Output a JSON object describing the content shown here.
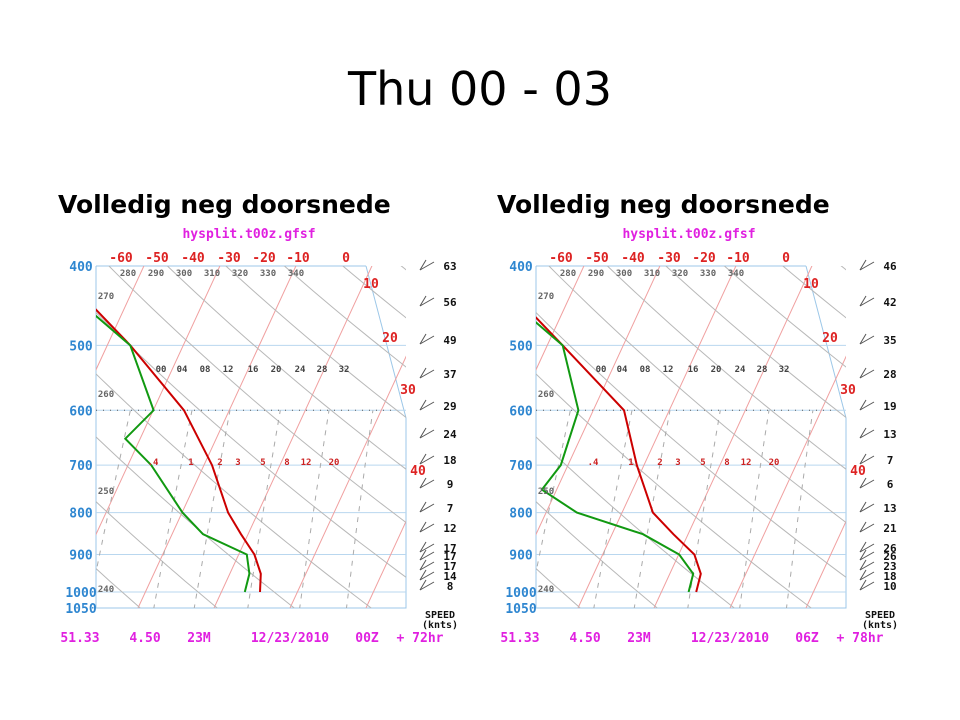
{
  "slide": {
    "title": "Thu 00 - 03"
  },
  "panels": [
    {
      "subtitle": "Volledig neg doorsnede"
    },
    {
      "subtitle": "Volledig neg doorsnede"
    }
  ],
  "chart_data": [
    {
      "type": "skew-t",
      "model_label": "hysplit.t00z.gfsf",
      "pressure_levels": [
        "400",
        "500",
        "600",
        "700",
        "800",
        "900",
        "1000",
        "1050"
      ],
      "temp_labels_top": [
        "-60",
        "-50",
        "-40",
        "-30",
        "-20",
        "-10",
        "0"
      ],
      "temp_labels_right": [
        "10",
        "20",
        "30",
        "40"
      ],
      "theta_labels_top": [
        "280",
        "290",
        "300",
        "310",
        "320",
        "330",
        "340"
      ],
      "theta_labels_left": [
        "270",
        "260",
        "250",
        "240"
      ],
      "mixing_ratio_labels_mid": [
        "00",
        "04",
        "08",
        "12",
        "16",
        "20",
        "24",
        "28",
        "32"
      ],
      "mixing_ratio_labels_low": [
        ".4",
        "1",
        "2",
        "3",
        "5",
        "8",
        "12",
        "20"
      ],
      "speed_header": "SPEED",
      "speed_unit": "(knts)",
      "wind_speeds": [
        "63",
        "56",
        "49",
        "37",
        "29",
        "24",
        "18",
        "9",
        "7",
        "12",
        "17",
        "17",
        "17",
        "14",
        "8"
      ],
      "footer": {
        "lat": "51.33",
        "lon": "4.50",
        "elev": "23M",
        "date": "12/23/2010",
        "cycle": "00Z",
        "forecast": "+ 72hr"
      },
      "temperature_color": "#cc0000",
      "dewpoint_color": "#119911",
      "temperature_profile": [
        [
          1000,
          5
        ],
        [
          950,
          4
        ],
        [
          900,
          2
        ],
        [
          850,
          -1
        ],
        [
          800,
          -4
        ],
        [
          700,
          -9
        ],
        [
          600,
          -16
        ],
        [
          500,
          -27
        ],
        [
          450,
          -34
        ],
        [
          400,
          -40
        ]
      ],
      "dewpoint_profile": [
        [
          1000,
          3
        ],
        [
          950,
          2.5
        ],
        [
          900,
          1
        ],
        [
          850,
          -6
        ],
        [
          800,
          -10
        ],
        [
          700,
          -17
        ],
        [
          650,
          -22
        ],
        [
          600,
          -20
        ],
        [
          500,
          -27
        ],
        [
          450,
          -35
        ],
        [
          400,
          -42
        ]
      ]
    },
    {
      "type": "skew-t",
      "model_label": "hysplit.t00z.gfsf",
      "pressure_levels": [
        "400",
        "500",
        "600",
        "700",
        "800",
        "900",
        "1000",
        "1050"
      ],
      "temp_labels_top": [
        "-60",
        "-50",
        "-40",
        "-30",
        "-20",
        "-10",
        "0"
      ],
      "temp_labels_right": [
        "10",
        "20",
        "30",
        "40"
      ],
      "theta_labels_top": [
        "280",
        "290",
        "300",
        "310",
        "320",
        "330",
        "340"
      ],
      "theta_labels_left": [
        "270",
        "260",
        "250",
        "240"
      ],
      "mixing_ratio_labels_mid": [
        "00",
        "04",
        "08",
        "12",
        "16",
        "20",
        "24",
        "28",
        "32"
      ],
      "mixing_ratio_labels_low": [
        ".4",
        "1",
        "2",
        "3",
        "5",
        "8",
        "12",
        "20"
      ],
      "speed_header": "SPEED",
      "speed_unit": "(knts)",
      "wind_speeds": [
        "46",
        "42",
        "35",
        "28",
        "19",
        "13",
        "7",
        "6",
        "13",
        "21",
        "26",
        "26",
        "23",
        "18",
        "10"
      ],
      "footer": {
        "lat": "51.33",
        "lon": "4.50",
        "elev": "23M",
        "date": "12/23/2010",
        "cycle": "06Z",
        "forecast": "+ 78hr"
      },
      "temperature_color": "#cc0000",
      "dewpoint_color": "#119911",
      "temperature_profile": [
        [
          1000,
          4.5
        ],
        [
          950,
          4
        ],
        [
          900,
          2
        ],
        [
          850,
          -2
        ],
        [
          800,
          -6
        ],
        [
          700,
          -11
        ],
        [
          600,
          -16
        ],
        [
          500,
          -28
        ],
        [
          450,
          -35
        ],
        [
          400,
          -41
        ]
      ],
      "dewpoint_profile": [
        [
          1000,
          3.5
        ],
        [
          950,
          3
        ],
        [
          900,
          0
        ],
        [
          850,
          -6
        ],
        [
          800,
          -16
        ],
        [
          750,
          -22
        ],
        [
          700,
          -21
        ],
        [
          600,
          -22
        ],
        [
          500,
          -28
        ],
        [
          450,
          -36
        ],
        [
          400,
          -43
        ]
      ]
    }
  ]
}
